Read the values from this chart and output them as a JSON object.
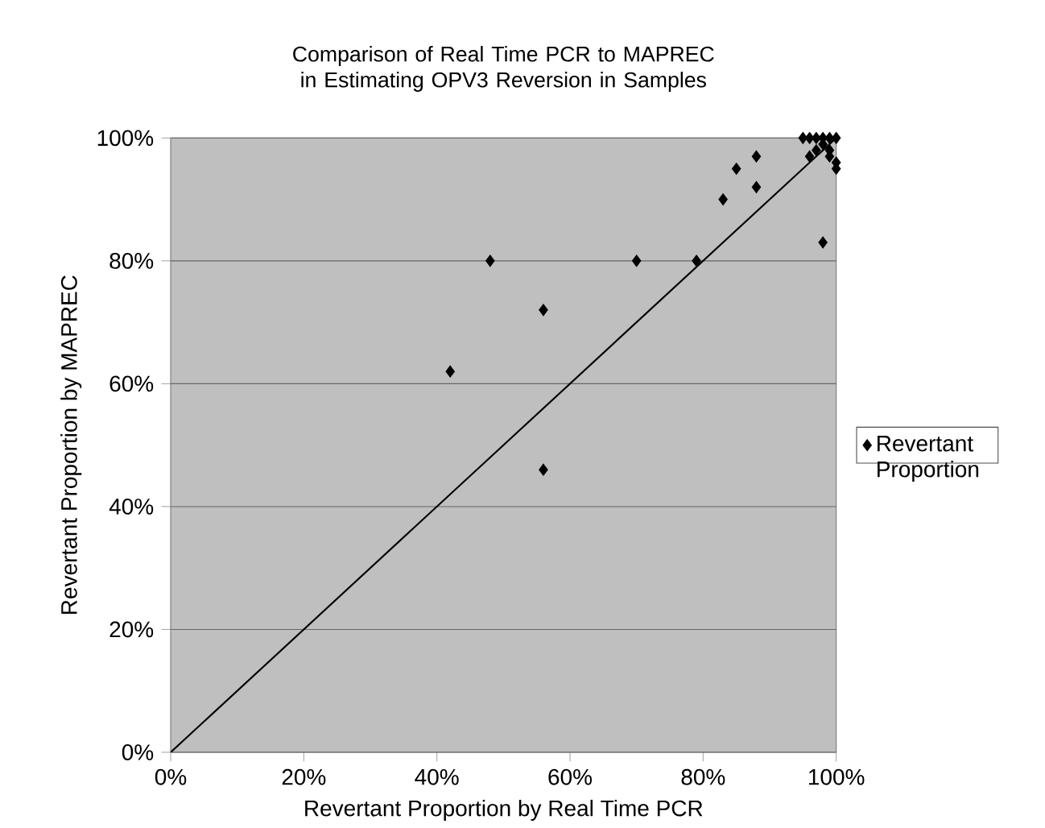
{
  "chart_data": {
    "type": "scatter",
    "title": "Comparison of Real Time PCR to MAPREC in Estimating OPV3 Reversion in Samples",
    "xlabel": "Revertant Proportion by Real Time PCR",
    "ylabel": "Revertant Proportion by MAPREC",
    "xlim": [
      0,
      100
    ],
    "ylim": [
      0,
      100
    ],
    "xticks": [
      {
        "value": 0,
        "label": "0%"
      },
      {
        "value": 20,
        "label": "20%"
      },
      {
        "value": 40,
        "label": "40%"
      },
      {
        "value": 60,
        "label": "60%"
      },
      {
        "value": 80,
        "label": "80%"
      },
      {
        "value": 100,
        "label": "100%"
      }
    ],
    "yticks": [
      {
        "value": 0,
        "label": "0%"
      },
      {
        "value": 20,
        "label": "20%"
      },
      {
        "value": 40,
        "label": "40%"
      },
      {
        "value": 60,
        "label": "60%"
      },
      {
        "value": 80,
        "label": "80%"
      },
      {
        "value": 100,
        "label": "100%"
      }
    ],
    "grid": "y",
    "legend": "right",
    "series": [
      {
        "name": "Revertant Proportion",
        "color": "#000000",
        "marker": "diamond",
        "x": [
          42,
          48,
          56,
          56,
          70,
          79,
          83,
          85,
          88,
          88,
          98,
          95,
          96,
          97,
          98,
          99,
          100,
          96,
          97,
          98,
          99,
          100,
          99,
          100
        ],
        "values": [
          62,
          80,
          72,
          46,
          80,
          80,
          90,
          95,
          92,
          97,
          83,
          100,
          100,
          100,
          100,
          100,
          100,
          97,
          98,
          99,
          98,
          96,
          97,
          95
        ]
      },
      {
        "type": "line",
        "color": "#000000",
        "marker": "none",
        "line_style": "solid",
        "x": [
          0,
          100
        ],
        "values": [
          0,
          100
        ]
      }
    ]
  }
}
